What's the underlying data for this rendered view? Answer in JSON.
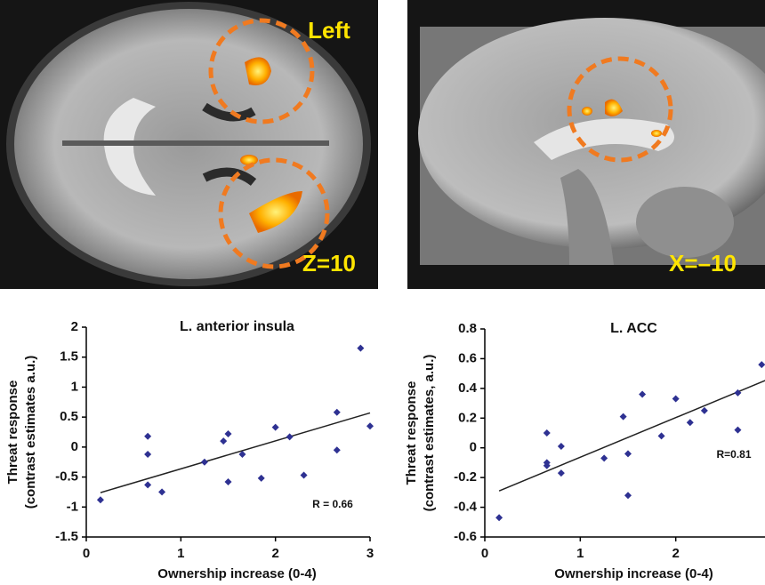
{
  "brain_labels": [
    "Left",
    "Z=10",
    "X=–10"
  ],
  "chart_data": [
    {
      "type": "scatter",
      "title": "L. anterior insula",
      "xlabel": "Ownership increase (0-4)",
      "ylabel": [
        "Threat response",
        "(contrast estimates a.u.)"
      ],
      "annotation": "R = 0.66",
      "color": "#2e3192",
      "xlim": [
        0,
        3
      ],
      "xticks": [
        0,
        1,
        2,
        3
      ],
      "ylim": [
        -1.5,
        2
      ],
      "yticks": [
        -1.5,
        -1,
        -0.5,
        0,
        0.5,
        1,
        1.5,
        2
      ],
      "x": [
        0.15,
        0.65,
        0.65,
        0.65,
        0.8,
        1.25,
        1.45,
        1.5,
        1.5,
        1.65,
        1.85,
        2.0,
        2.15,
        2.3,
        2.65,
        2.65,
        2.9,
        3.0
      ],
      "y": [
        -0.88,
        0.18,
        -0.12,
        -0.63,
        -0.75,
        -0.25,
        0.1,
        0.22,
        -0.58,
        -0.12,
        -0.52,
        0.33,
        0.17,
        -0.47,
        0.58,
        -0.05,
        1.65,
        0.35
      ],
      "trendline": {
        "x": [
          0.15,
          3.0
        ],
        "y": [
          -0.76,
          0.57
        ]
      }
    },
    {
      "type": "scatter",
      "title": "L. ACC",
      "xlabel": "Ownership increase (0-4)",
      "ylabel": [
        "Threat response",
        "(contrast estimates, a.u.)"
      ],
      "annotation": "R=0.81",
      "color": "#2e3192",
      "xlim": [
        0,
        3
      ],
      "xticks": [
        0,
        1,
        2
      ],
      "ylim": [
        -0.6,
        0.8
      ],
      "yticks": [
        -0.6,
        -0.4,
        -0.2,
        0,
        0.2,
        0.4,
        0.6,
        0.8
      ],
      "x": [
        0.15,
        0.65,
        0.65,
        0.65,
        0.8,
        0.8,
        1.25,
        1.45,
        1.5,
        1.5,
        1.65,
        1.85,
        2.0,
        2.15,
        2.3,
        2.65,
        2.65,
        2.9
      ],
      "y": [
        -0.47,
        0.1,
        -0.1,
        -0.12,
        0.01,
        -0.17,
        -0.07,
        0.21,
        -0.04,
        -0.32,
        0.36,
        0.08,
        0.33,
        0.17,
        0.25,
        0.37,
        0.12,
        0.56
      ],
      "trendline": {
        "x": [
          0.15,
          3.0
        ],
        "y": [
          -0.29,
          0.47
        ]
      }
    }
  ]
}
